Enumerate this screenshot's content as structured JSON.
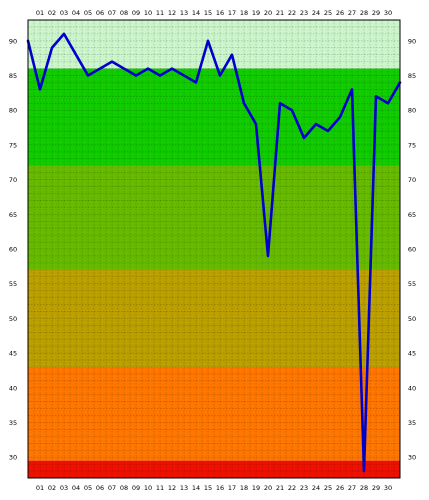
{
  "chart_data": {
    "type": "line",
    "title": "",
    "xlabel": "",
    "ylabel": "",
    "x": [
      "01",
      "02",
      "03",
      "04",
      "05",
      "06",
      "07",
      "08",
      "09",
      "10",
      "11",
      "12",
      "13",
      "14",
      "15",
      "16",
      "17",
      "18",
      "19",
      "20",
      "21",
      "22",
      "23",
      "24",
      "25",
      "26",
      "27",
      "28",
      "29",
      "30"
    ],
    "series": [
      {
        "values": [
          90,
          83,
          89,
          91,
          88,
          85,
          86,
          87,
          86,
          85,
          86,
          85,
          86,
          85,
          84,
          90,
          85,
          88,
          81,
          78,
          59,
          81,
          80,
          76,
          78,
          77,
          79,
          83,
          28,
          82,
          81,
          84
        ],
        "x_values": [
          0.0,
          1.0,
          2.0,
          3.0,
          4.0,
          5.0,
          6.0,
          7.0,
          8.0,
          9.0,
          10.0,
          11.0,
          12.0,
          13.0,
          14.0,
          15.0,
          16.0,
          17.0,
          18.0,
          19.0,
          20.0,
          21.0,
          22.0,
          23.0,
          24.0,
          25.0,
          26.0,
          27.0,
          28.0,
          29.0,
          30.0,
          31.0
        ],
        "color": "#0000cc"
      }
    ],
    "y_ticks": [
      30,
      35,
      40,
      45,
      50,
      55,
      60,
      65,
      70,
      75,
      80,
      85,
      90
    ],
    "ylim": [
      27,
      93
    ],
    "grid": true,
    "bands": [
      {
        "from": 86,
        "to": 93,
        "color": "#ccf5cc"
      },
      {
        "from": 72,
        "to": 86,
        "color": "#11cc00"
      },
      {
        "from": 57,
        "to": 72,
        "color": "#66bb00"
      },
      {
        "from": 43,
        "to": 57,
        "color": "#bba000"
      },
      {
        "from": 29.5,
        "to": 43,
        "color": "#ff7700"
      },
      {
        "from": 27,
        "to": 29.5,
        "color": "#ee1100"
      }
    ]
  }
}
